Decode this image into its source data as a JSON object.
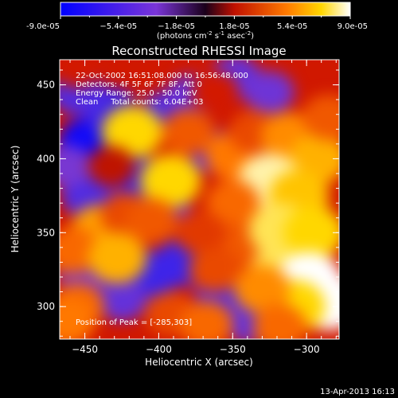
{
  "chart_data": {
    "type": "heatmap",
    "title": "Reconstructed RHESSI Image",
    "xlabel": "Heliocentric X (arcsec)",
    "ylabel": "Heliocentric Y (arcsec)",
    "xlim": [
      -467,
      -278
    ],
    "ylim": [
      278,
      467
    ],
    "x_ticks": [
      -450,
      -400,
      -350,
      -300
    ],
    "y_ticks": [
      300,
      350,
      400,
      450
    ],
    "colorbar": {
      "range": [
        -9e-05,
        9e-05
      ],
      "tick_values": [
        -9e-05,
        -5.4e-05,
        -1.8e-05,
        1.8e-05,
        5.4e-05,
        9e-05
      ],
      "tick_labels": [
        "-9.0e-05",
        "−5.4e-05",
        "−1.8e-05",
        "1.8e-05",
        "5.4e-05",
        "9.0e-05"
      ],
      "unit_text": "(photons cm",
      "unit_sup1": "-2",
      "unit_mid": " s",
      "unit_sup2": "-1",
      "unit_end": " asec",
      "unit_sup3": "-2",
      "unit_close": ")"
    },
    "annotations": [
      "22-Oct-2002 16:51:08.000 to 16:56:48.000",
      "Detectors: 4F 5F 6F 7F 8F, Att 0",
      "Energy Range: 25.0 - 50.0 keV",
      "Clean     Total counts: 6.04E+03"
    ],
    "peak_label": "Position of Peak = [-285,303]",
    "peak": [
      -285,
      303
    ],
    "footer_date": "13-Apr-2013 16:13",
    "regions": [
      {
        "x": -447,
        "y": 410,
        "v": -0.9
      },
      {
        "x": -432,
        "y": 432,
        "v": -0.6
      },
      {
        "x": -455,
        "y": 445,
        "v": -0.5
      },
      {
        "x": -412,
        "y": 385,
        "v": -0.6
      },
      {
        "x": -448,
        "y": 375,
        "v": -0.5
      },
      {
        "x": -462,
        "y": 395,
        "v": -0.3
      },
      {
        "x": -395,
        "y": 430,
        "v": -0.5
      },
      {
        "x": -378,
        "y": 442,
        "v": -0.4
      },
      {
        "x": -348,
        "y": 455,
        "v": -0.4
      },
      {
        "x": -325,
        "y": 445,
        "v": -0.35
      },
      {
        "x": -362,
        "y": 405,
        "v": -0.4
      },
      {
        "x": -330,
        "y": 395,
        "v": -0.3
      },
      {
        "x": -395,
        "y": 370,
        "v": -0.35
      },
      {
        "x": -405,
        "y": 322,
        "v": -0.6
      },
      {
        "x": -383,
        "y": 330,
        "v": -0.6
      },
      {
        "x": -425,
        "y": 305,
        "v": -0.4
      },
      {
        "x": -358,
        "y": 310,
        "v": -0.45
      },
      {
        "x": -338,
        "y": 290,
        "v": -0.4
      },
      {
        "x": -452,
        "y": 322,
        "v": -0.3
      },
      {
        "x": -418,
        "y": 418,
        "v": 0.85
      },
      {
        "x": -440,
        "y": 352,
        "v": 0.7
      },
      {
        "x": -458,
        "y": 338,
        "v": 0.55
      },
      {
        "x": -422,
        "y": 362,
        "v": 0.45
      },
      {
        "x": -428,
        "y": 333,
        "v": 0.75
      },
      {
        "x": -392,
        "y": 385,
        "v": 0.85
      },
      {
        "x": -405,
        "y": 358,
        "v": 0.5
      },
      {
        "x": -380,
        "y": 418,
        "v": 0.5
      },
      {
        "x": -350,
        "y": 402,
        "v": 0.6
      },
      {
        "x": -335,
        "y": 418,
        "v": 0.45
      },
      {
        "x": -312,
        "y": 415,
        "v": 0.65
      },
      {
        "x": -292,
        "y": 400,
        "v": 0.75
      },
      {
        "x": -285,
        "y": 428,
        "v": 0.5
      },
      {
        "x": -325,
        "y": 385,
        "v": 0.95
      },
      {
        "x": -305,
        "y": 375,
        "v": 0.8
      },
      {
        "x": -350,
        "y": 370,
        "v": 0.55
      },
      {
        "x": -340,
        "y": 342,
        "v": 0.5
      },
      {
        "x": -318,
        "y": 352,
        "v": 0.9
      },
      {
        "x": -295,
        "y": 350,
        "v": 0.85
      },
      {
        "x": -372,
        "y": 350,
        "v": 0.4
      },
      {
        "x": -362,
        "y": 325,
        "v": 0.45
      },
      {
        "x": -318,
        "y": 322,
        "v": 0.9
      },
      {
        "x": -298,
        "y": 318,
        "v": 1.0
      },
      {
        "x": -285,
        "y": 303,
        "v": 1.0
      },
      {
        "x": -308,
        "y": 300,
        "v": 0.85
      },
      {
        "x": -330,
        "y": 312,
        "v": 0.65
      },
      {
        "x": -455,
        "y": 300,
        "v": 0.55
      },
      {
        "x": -462,
        "y": 290,
        "v": 0.6
      },
      {
        "x": -392,
        "y": 295,
        "v": 0.45
      },
      {
        "x": -368,
        "y": 288,
        "v": 0.55
      },
      {
        "x": -318,
        "y": 286,
        "v": 0.55
      },
      {
        "x": -455,
        "y": 462,
        "v": 0.3
      },
      {
        "x": -362,
        "y": 445,
        "v": 0.3
      },
      {
        "x": -432,
        "y": 395,
        "v": 0.25
      }
    ]
  }
}
